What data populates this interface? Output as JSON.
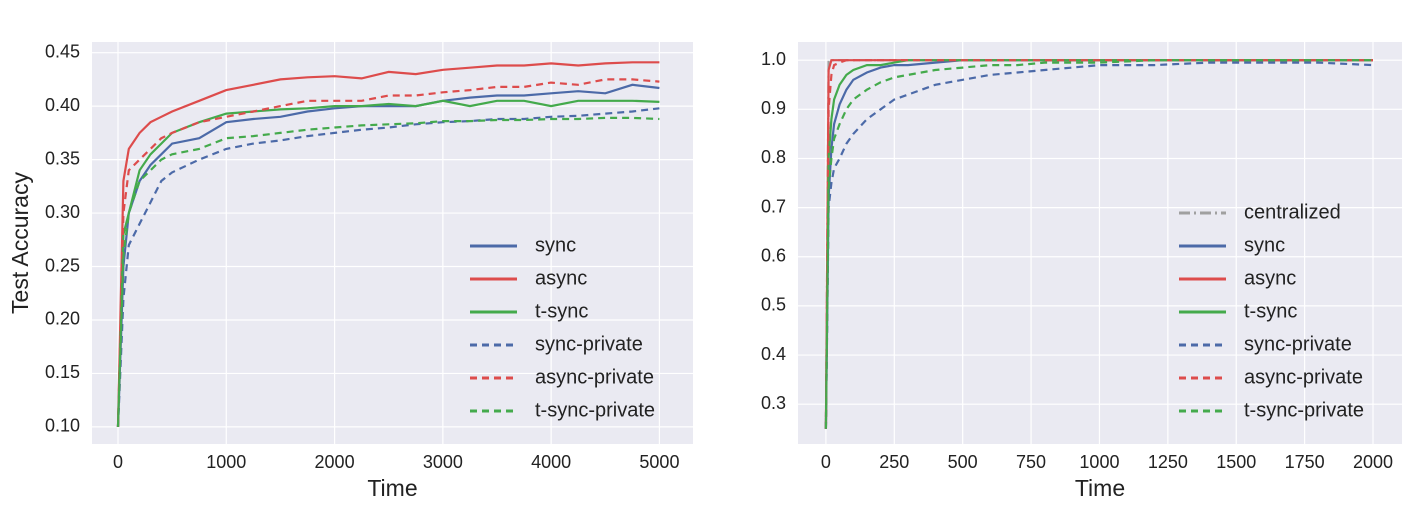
{
  "chart_data": [
    {
      "type": "line",
      "xlabel": "Time",
      "ylabel": "Test Accuracy",
      "grid": true,
      "legend": "lower right",
      "xlim": [
        -240,
        5310
      ],
      "ylim": [
        0.084,
        0.46
      ],
      "xticks": [
        0,
        1000,
        2000,
        3000,
        4000,
        5000
      ],
      "yticks": [
        {
          "value": 0.1,
          "label": "0.10"
        },
        0.15,
        {
          "value": 0.2,
          "label": "0.20"
        },
        0.25,
        {
          "value": 0.3,
          "label": "0.30"
        },
        0.35,
        {
          "value": 0.4,
          "label": "0.40"
        },
        0.45
      ],
      "x": [
        0,
        50,
        100,
        200,
        300,
        400,
        500,
        750,
        1000,
        1250,
        1500,
        1750,
        2000,
        2250,
        2500,
        2750,
        3000,
        3250,
        3500,
        3750,
        4000,
        4250,
        4500,
        4750,
        5000
      ],
      "series": [
        {
          "name": "sync",
          "color": "#4c6aa8",
          "linestyle": "solid",
          "values": [
            0.1,
            0.25,
            0.3,
            0.33,
            0.345,
            0.355,
            0.365,
            0.37,
            0.385,
            0.388,
            0.39,
            0.395,
            0.398,
            0.4,
            0.4,
            0.4,
            0.405,
            0.408,
            0.41,
            0.41,
            0.412,
            0.414,
            0.412,
            0.42,
            0.417
          ]
        },
        {
          "name": "async",
          "color": "#dd4c4c",
          "linestyle": "solid",
          "values": [
            0.1,
            0.33,
            0.36,
            0.375,
            0.385,
            0.39,
            0.395,
            0.405,
            0.415,
            0.42,
            0.425,
            0.427,
            0.428,
            0.426,
            0.432,
            0.43,
            0.434,
            0.436,
            0.438,
            0.438,
            0.44,
            0.438,
            0.44,
            0.441,
            0.441
          ]
        },
        {
          "name": "t-sync",
          "color": "#44aa4c",
          "linestyle": "solid",
          "values": [
            0.1,
            0.28,
            0.3,
            0.34,
            0.355,
            0.365,
            0.375,
            0.385,
            0.393,
            0.395,
            0.397,
            0.398,
            0.4,
            0.4,
            0.402,
            0.4,
            0.405,
            0.4,
            0.405,
            0.405,
            0.4,
            0.405,
            0.405,
            0.405,
            0.404
          ]
        },
        {
          "name": "sync-private",
          "color": "#4c6aa8",
          "linestyle": "dashed",
          "values": [
            0.1,
            0.22,
            0.27,
            0.29,
            0.31,
            0.33,
            0.338,
            0.35,
            0.36,
            0.365,
            0.368,
            0.372,
            0.375,
            0.378,
            0.38,
            0.383,
            0.385,
            0.386,
            0.388,
            0.388,
            0.39,
            0.391,
            0.393,
            0.395,
            0.398
          ]
        },
        {
          "name": "async-private",
          "color": "#dd4c4c",
          "linestyle": "dashed",
          "values": [
            0.1,
            0.3,
            0.34,
            0.35,
            0.36,
            0.37,
            0.375,
            0.385,
            0.39,
            0.395,
            0.4,
            0.405,
            0.405,
            0.405,
            0.41,
            0.41,
            0.413,
            0.415,
            0.418,
            0.418,
            0.422,
            0.42,
            0.425,
            0.425,
            0.423
          ]
        },
        {
          "name": "t-sync-private",
          "color": "#44aa4c",
          "linestyle": "dashed",
          "values": [
            0.1,
            0.26,
            0.3,
            0.33,
            0.34,
            0.35,
            0.355,
            0.36,
            0.37,
            0.372,
            0.375,
            0.378,
            0.38,
            0.382,
            0.383,
            0.384,
            0.386,
            0.386,
            0.387,
            0.387,
            0.388,
            0.388,
            0.389,
            0.389,
            0.388
          ]
        }
      ]
    },
    {
      "type": "line",
      "xlabel": "Time",
      "grid": true,
      "legend": "lower right",
      "xlim": [
        -102,
        2106
      ],
      "ylim": [
        0.219,
        1.037
      ],
      "xticks": [
        0,
        250,
        500,
        750,
        1000,
        1250,
        1500,
        1750,
        2000
      ],
      "yticks": [
        0.3,
        0.4,
        0.5,
        0.6,
        0.7,
        0.8,
        0.9,
        {
          "value": 1.0,
          "label": "1.0"
        }
      ],
      "x": [
        0,
        10,
        20,
        30,
        50,
        75,
        100,
        150,
        200,
        250,
        300,
        400,
        500,
        600,
        700,
        800,
        900,
        1000,
        1200,
        1400,
        1600,
        1800,
        2000
      ],
      "series": [
        {
          "name": "centralized",
          "color": "#a0a0a0",
          "linestyle": "dashdot",
          "values": [
            0.25,
            1.0,
            1.0,
            1.0,
            1.0,
            1.0,
            1.0,
            1.0,
            1.0,
            1.0,
            1.0,
            1.0,
            1.0,
            1.0,
            1.0,
            1.0,
            1.0,
            1.0,
            1.0,
            1.0,
            1.0,
            1.0,
            1.0
          ]
        },
        {
          "name": "sync",
          "color": "#4c6aa8",
          "linestyle": "solid",
          "values": [
            0.25,
            0.72,
            0.82,
            0.87,
            0.91,
            0.94,
            0.96,
            0.975,
            0.985,
            0.99,
            0.99,
            0.995,
            1.0,
            1.0,
            1.0,
            1.0,
            1.0,
            1.0,
            1.0,
            1.0,
            1.0,
            1.0,
            1.0
          ]
        },
        {
          "name": "async",
          "color": "#dd4c4c",
          "linestyle": "solid",
          "values": [
            0.25,
            0.98,
            1.0,
            1.0,
            1.0,
            1.0,
            1.0,
            1.0,
            1.0,
            1.0,
            1.0,
            1.0,
            1.0,
            1.0,
            1.0,
            1.0,
            1.0,
            1.0,
            1.0,
            1.0,
            1.0,
            1.0,
            1.0
          ]
        },
        {
          "name": "t-sync",
          "color": "#44aa4c",
          "linestyle": "solid",
          "values": [
            0.25,
            0.8,
            0.88,
            0.92,
            0.95,
            0.97,
            0.98,
            0.99,
            0.99,
            0.995,
            1.0,
            1.0,
            1.0,
            1.0,
            1.0,
            1.0,
            1.0,
            1.0,
            1.0,
            1.0,
            1.0,
            1.0,
            1.0
          ]
        },
        {
          "name": "sync-private",
          "color": "#4c6aa8",
          "linestyle": "dashed",
          "values": [
            0.25,
            0.7,
            0.75,
            0.78,
            0.8,
            0.83,
            0.85,
            0.88,
            0.9,
            0.92,
            0.93,
            0.95,
            0.96,
            0.97,
            0.975,
            0.98,
            0.985,
            0.99,
            0.99,
            0.995,
            0.995,
            0.995,
            0.99
          ]
        },
        {
          "name": "async-private",
          "color": "#dd4c4c",
          "linestyle": "dashed",
          "values": [
            0.25,
            0.9,
            0.97,
            0.99,
            0.995,
            1.0,
            1.0,
            1.0,
            1.0,
            1.0,
            1.0,
            1.0,
            1.0,
            1.0,
            1.0,
            1.0,
            1.0,
            1.0,
            1.0,
            1.0,
            1.0,
            1.0,
            1.0
          ]
        },
        {
          "name": "t-sync-private",
          "color": "#44aa4c",
          "linestyle": "dashed",
          "values": [
            0.25,
            0.74,
            0.8,
            0.84,
            0.87,
            0.9,
            0.92,
            0.94,
            0.955,
            0.965,
            0.97,
            0.98,
            0.985,
            0.99,
            0.99,
            0.995,
            0.995,
            0.995,
            1.0,
            1.0,
            1.0,
            1.0,
            1.0
          ]
        }
      ]
    }
  ]
}
